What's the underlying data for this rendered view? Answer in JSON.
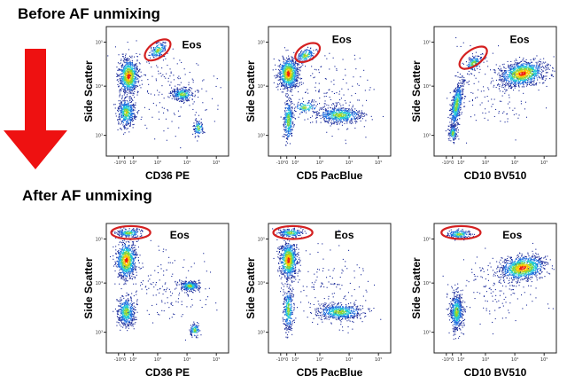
{
  "sections": [
    {
      "title": "Before AF unmixing"
    },
    {
      "title": "After AF unmixing"
    }
  ],
  "colors": {
    "gate": "#d42020",
    "arrow": "#ee1111"
  },
  "chart_data": [
    {
      "type": "scatter",
      "section": "Before AF unmixing",
      "xlabel": "CD36 PE",
      "ylabel": "Side Scatter",
      "gate_label": "Eos",
      "x_ticks": [
        "-10²",
        "0",
        "10²",
        "10³",
        "10⁴",
        "10⁵"
      ],
      "y_ticks": [
        "10⁵",
        "10⁴",
        "10³"
      ]
    },
    {
      "type": "scatter",
      "section": "Before AF unmixing",
      "xlabel": "CD5 PacBlue",
      "ylabel": "Side Scatter",
      "gate_label": "Eos",
      "x_ticks": [
        "-10²",
        "0",
        "10²",
        "10³",
        "10⁴",
        "10⁵"
      ],
      "y_ticks": [
        "10⁵",
        "10⁴",
        "10³"
      ]
    },
    {
      "type": "scatter",
      "section": "Before AF unmixing",
      "xlabel": "CD10 BV510",
      "ylabel": "Side Scatter",
      "gate_label": "Eos",
      "x_ticks": [
        "-10²",
        "0",
        "10²",
        "10³",
        "10⁴",
        "10⁵"
      ],
      "y_ticks": [
        "10⁵",
        "10⁴",
        "10³"
      ]
    },
    {
      "type": "scatter",
      "section": "After AF unmixing",
      "xlabel": "CD36 PE",
      "ylabel": "Side Scatter",
      "gate_label": "Eos",
      "x_ticks": [
        "-10²",
        "0",
        "10²",
        "10³",
        "10⁴",
        "10⁵"
      ],
      "y_ticks": [
        "10⁵",
        "10⁴",
        "10³"
      ]
    },
    {
      "type": "scatter",
      "section": "After AF unmixing",
      "xlabel": "CD5 PacBlue",
      "ylabel": "Side Scatter",
      "gate_label": "Eos",
      "x_ticks": [
        "-10²",
        "0",
        "10²",
        "10³",
        "10⁴",
        "10⁵"
      ],
      "y_ticks": [
        "10⁵",
        "10⁴",
        "10³"
      ]
    },
    {
      "type": "scatter",
      "section": "After AF unmixing",
      "xlabel": "CD10 BV510",
      "ylabel": "Side Scatter",
      "gate_label": "Eos",
      "x_ticks": [
        "-10²",
        "0",
        "10²",
        "10³",
        "10⁴",
        "10⁵"
      ],
      "y_ticks": [
        "10⁵",
        "10⁴",
        "10³"
      ]
    }
  ]
}
